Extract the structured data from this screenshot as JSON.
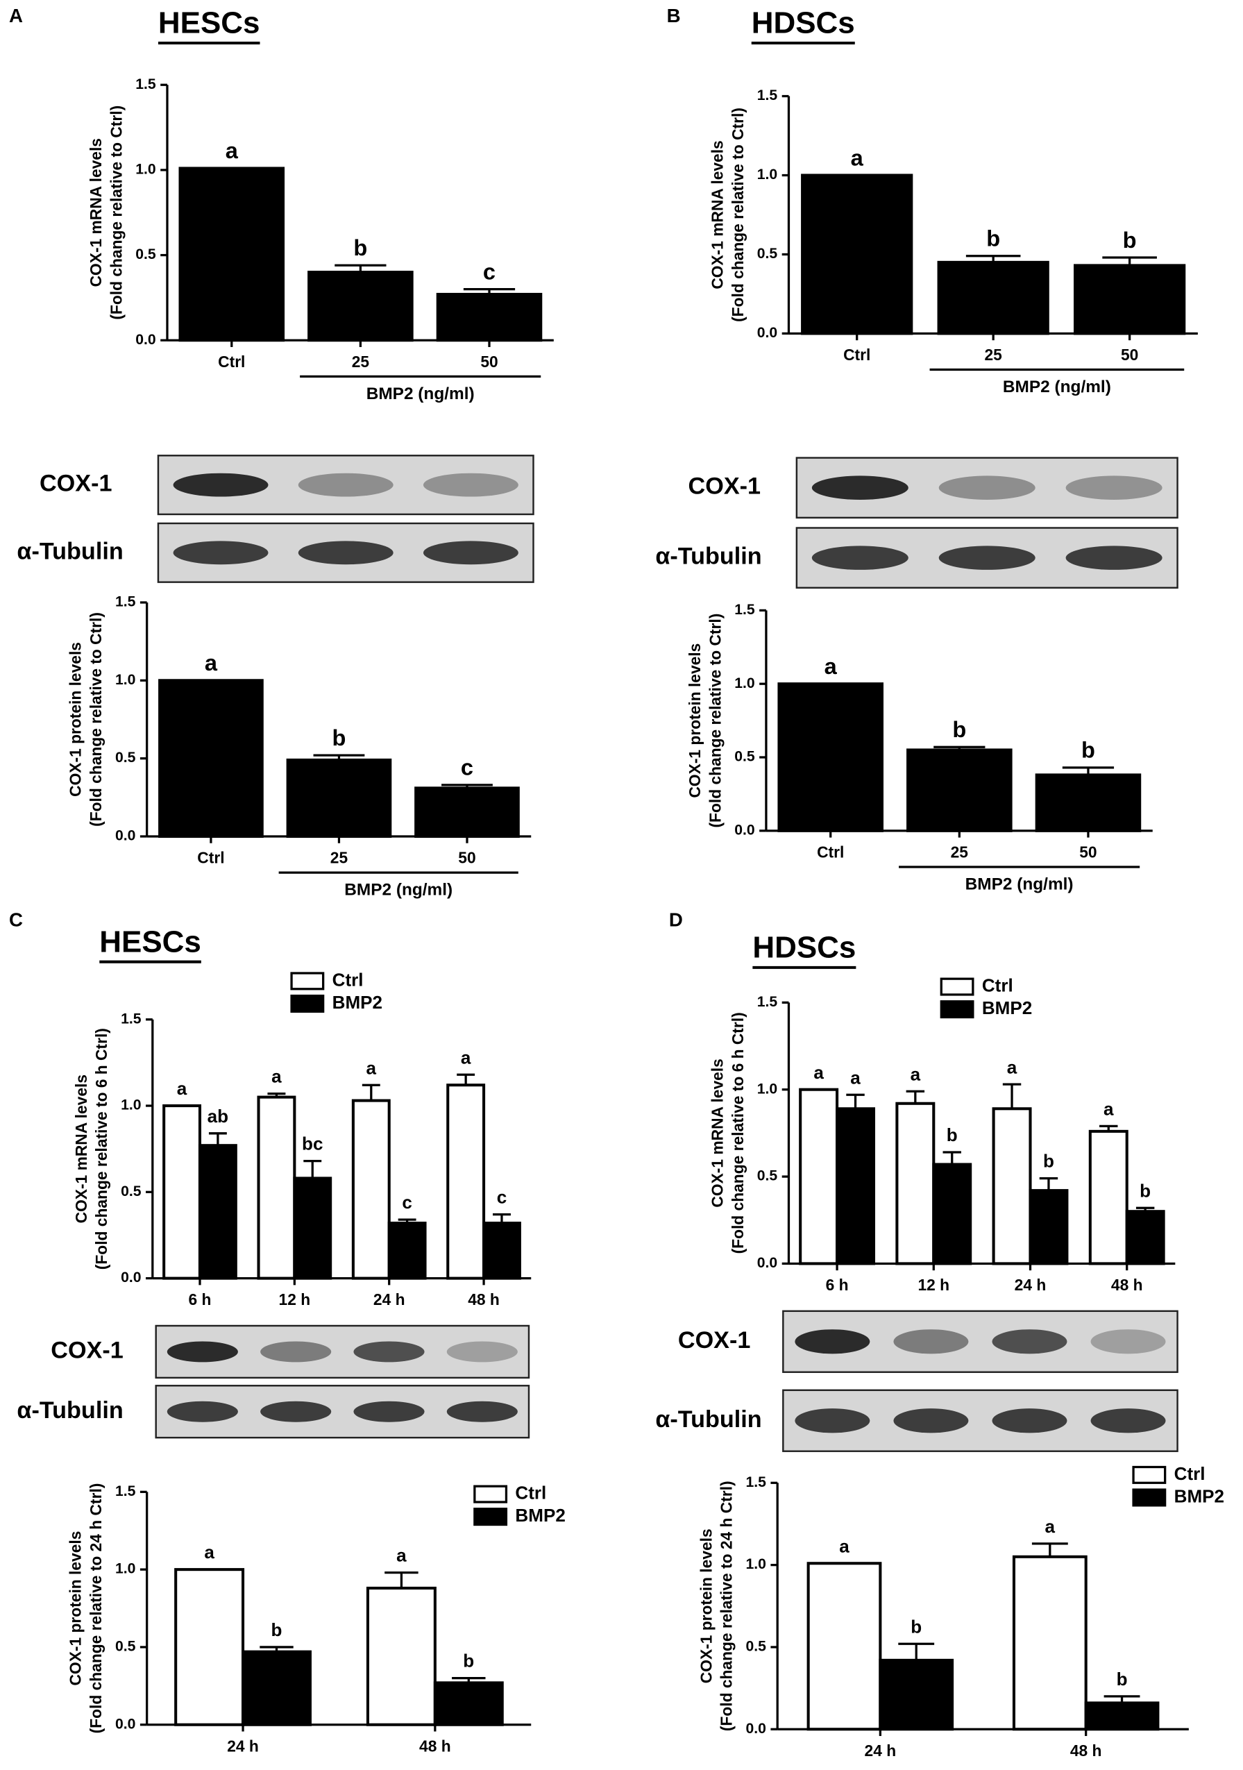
{
  "chart_data": [
    {
      "type": "bar",
      "panel": "A",
      "title": "HESCs",
      "ylabel": [
        "COX-1 mRNA levels",
        "(Fold change relative to Ctrl)"
      ],
      "categories": [
        "Ctrl",
        "25",
        "50"
      ],
      "group_label": "BMP2 (ng/ml)",
      "ylim": [
        0,
        1.5
      ],
      "yticks": [
        {
          "value": 0,
          "label": "0.0"
        },
        {
          "value": 0.5,
          "label": "0.5"
        },
        {
          "value": 1,
          "label": "1.0"
        },
        {
          "value": 1.5,
          "label": "1.5"
        }
      ],
      "series": [
        {
          "color": "#000000",
          "values": [
            1.01,
            0.4,
            0.27
          ],
          "errors": [
            0,
            0.04,
            0.03
          ],
          "letters": [
            "a",
            "b",
            "c"
          ]
        }
      ]
    },
    {
      "type": "bar",
      "panel": "B",
      "title": "HDSCs",
      "ylabel": [
        "COX-1 mRNA levels",
        "(Fold change relative to Ctrl)"
      ],
      "categories": [
        "Ctrl",
        "25",
        "50"
      ],
      "group_label": "BMP2 (ng/ml)",
      "ylim": [
        0,
        1.5
      ],
      "yticks": [
        {
          "value": 0,
          "label": "0.0"
        },
        {
          "value": 0.5,
          "label": "0.5"
        },
        {
          "value": 1,
          "label": "1.0"
        },
        {
          "value": 1.5,
          "label": "1.5"
        }
      ],
      "series": [
        {
          "color": "#000000",
          "values": [
            1.0,
            0.45,
            0.43
          ],
          "errors": [
            0,
            0.04,
            0.05
          ],
          "letters": [
            "a",
            "b",
            "b"
          ]
        }
      ]
    },
    {
      "type": "bar",
      "blot_rows": [
        "COX-1",
        "α-Tubulin"
      ],
      "ylabel": [
        "COX-1 protein levels",
        "(Fold change relative to Ctrl)"
      ],
      "categories": [
        "Ctrl",
        "25",
        "50"
      ],
      "group_label": "BMP2 (ng/ml)",
      "ylim": [
        0,
        1.5
      ],
      "yticks": [
        {
          "value": 0,
          "label": "0.0"
        },
        {
          "value": 0.5,
          "label": "0.5"
        },
        {
          "value": 1,
          "label": "1.0"
        },
        {
          "value": 1.5,
          "label": "1.5"
        }
      ],
      "series": [
        {
          "color": "#000000",
          "values": [
            1.0,
            0.49,
            0.31
          ],
          "errors": [
            0,
            0.03,
            0.02
          ],
          "letters": [
            "a",
            "b",
            "c"
          ]
        }
      ]
    },
    {
      "type": "bar",
      "blot_rows": [
        "COX-1",
        "α-Tubulin"
      ],
      "ylabel": [
        "COX-1 protein levels",
        "(Fold change relative to Ctrl)"
      ],
      "categories": [
        "Ctrl",
        "25",
        "50"
      ],
      "group_label": "BMP2 (ng/ml)",
      "ylim": [
        0,
        1.5
      ],
      "yticks": [
        {
          "value": 0,
          "label": "0.0"
        },
        {
          "value": 0.5,
          "label": "0.5"
        },
        {
          "value": 1,
          "label": "1.0"
        },
        {
          "value": 1.5,
          "label": "1.5"
        }
      ],
      "series": [
        {
          "color": "#000000",
          "values": [
            1.0,
            0.55,
            0.38
          ],
          "errors": [
            0,
            0.02,
            0.05
          ],
          "letters": [
            "a",
            "b",
            "b"
          ]
        }
      ]
    },
    {
      "type": "bar",
      "panel": "C",
      "title": "HESCs",
      "ylabel": [
        "COX-1 mRNA levels",
        "(Fold change relative to 6 h Ctrl)"
      ],
      "categories": [
        "6 h",
        "12 h",
        "24 h",
        "48 h"
      ],
      "ylim": [
        0,
        1.5
      ],
      "yticks": [
        {
          "value": 0,
          "label": "0.0"
        },
        {
          "value": 0.5,
          "label": "0.5"
        },
        {
          "value": 1,
          "label": "1.0"
        },
        {
          "value": 1.5,
          "label": "1.5"
        }
      ],
      "series": [
        {
          "name": "Ctrl",
          "color": "#ffffff",
          "values": [
            1.0,
            1.05,
            1.03,
            1.12
          ],
          "errors": [
            0,
            0.02,
            0.09,
            0.06
          ],
          "letters": [
            "a",
            "a",
            "a",
            "a"
          ]
        },
        {
          "name": "BMP2",
          "color": "#000000",
          "values": [
            0.77,
            0.58,
            0.32,
            0.32
          ],
          "errors": [
            0.07,
            0.1,
            0.02,
            0.05
          ],
          "letters": [
            "ab",
            "bc",
            "c",
            "c"
          ]
        }
      ]
    },
    {
      "type": "bar",
      "panel": "D",
      "title": "HDSCs",
      "ylabel": [
        "COX-1 mRNA levels",
        "(Fold change relative to 6 h Ctrl)"
      ],
      "categories": [
        "6 h",
        "12 h",
        "24 h",
        "48 h"
      ],
      "ylim": [
        0,
        1.5
      ],
      "yticks": [
        {
          "value": 0,
          "label": "0.0"
        },
        {
          "value": 0.5,
          "label": "0.5"
        },
        {
          "value": 1,
          "label": "1.0"
        },
        {
          "value": 1.5,
          "label": "1.5"
        }
      ],
      "series": [
        {
          "name": "Ctrl",
          "color": "#ffffff",
          "values": [
            1.0,
            0.92,
            0.89,
            0.76
          ],
          "errors": [
            0,
            0.07,
            0.14,
            0.03
          ],
          "letters": [
            "a",
            "a",
            "a",
            "a"
          ]
        },
        {
          "name": "BMP2",
          "color": "#000000",
          "values": [
            0.89,
            0.57,
            0.42,
            0.3
          ],
          "errors": [
            0.08,
            0.07,
            0.07,
            0.02
          ],
          "letters": [
            "a",
            "b",
            "b",
            "b"
          ]
        }
      ]
    },
    {
      "type": "bar",
      "blot_rows": [
        "COX-1",
        "α-Tubulin"
      ],
      "ylabel": [
        "COX-1 protein levels",
        "(Fold change relative to 24 h Ctrl)"
      ],
      "categories": [
        "24 h",
        "48 h"
      ],
      "ylim": [
        0,
        1.5
      ],
      "yticks": [
        {
          "value": 0,
          "label": "0.0"
        },
        {
          "value": 0.5,
          "label": "0.5"
        },
        {
          "value": 1,
          "label": "1.0"
        },
        {
          "value": 1.5,
          "label": "1.5"
        }
      ],
      "series": [
        {
          "name": "Ctrl",
          "color": "#ffffff",
          "values": [
            1.0,
            0.88
          ],
          "errors": [
            0,
            0.1
          ],
          "letters": [
            "a",
            "a"
          ]
        },
        {
          "name": "BMP2",
          "color": "#000000",
          "values": [
            0.47,
            0.27
          ],
          "errors": [
            0.03,
            0.03
          ],
          "letters": [
            "b",
            "b"
          ]
        }
      ]
    },
    {
      "type": "bar",
      "blot_rows": [
        "COX-1",
        "α-Tubulin"
      ],
      "ylabel": [
        "COX-1 protein levels",
        "(Fold change relative to 24 h Ctrl)"
      ],
      "categories": [
        "24 h",
        "48 h"
      ],
      "ylim": [
        0,
        1.5
      ],
      "yticks": [
        {
          "value": 0,
          "label": "0.0"
        },
        {
          "value": 0.5,
          "label": "0.5"
        },
        {
          "value": 1,
          "label": "1.0"
        },
        {
          "value": 1.5,
          "label": "1.5"
        }
      ],
      "series": [
        {
          "name": "Ctrl",
          "color": "#ffffff",
          "values": [
            1.01,
            1.05
          ],
          "errors": [
            0,
            0.08
          ],
          "letters": [
            "a",
            "a"
          ]
        },
        {
          "name": "BMP2",
          "color": "#000000",
          "values": [
            0.42,
            0.16
          ],
          "errors": [
            0.1,
            0.04
          ],
          "letters": [
            "b",
            "b"
          ]
        }
      ]
    }
  ]
}
